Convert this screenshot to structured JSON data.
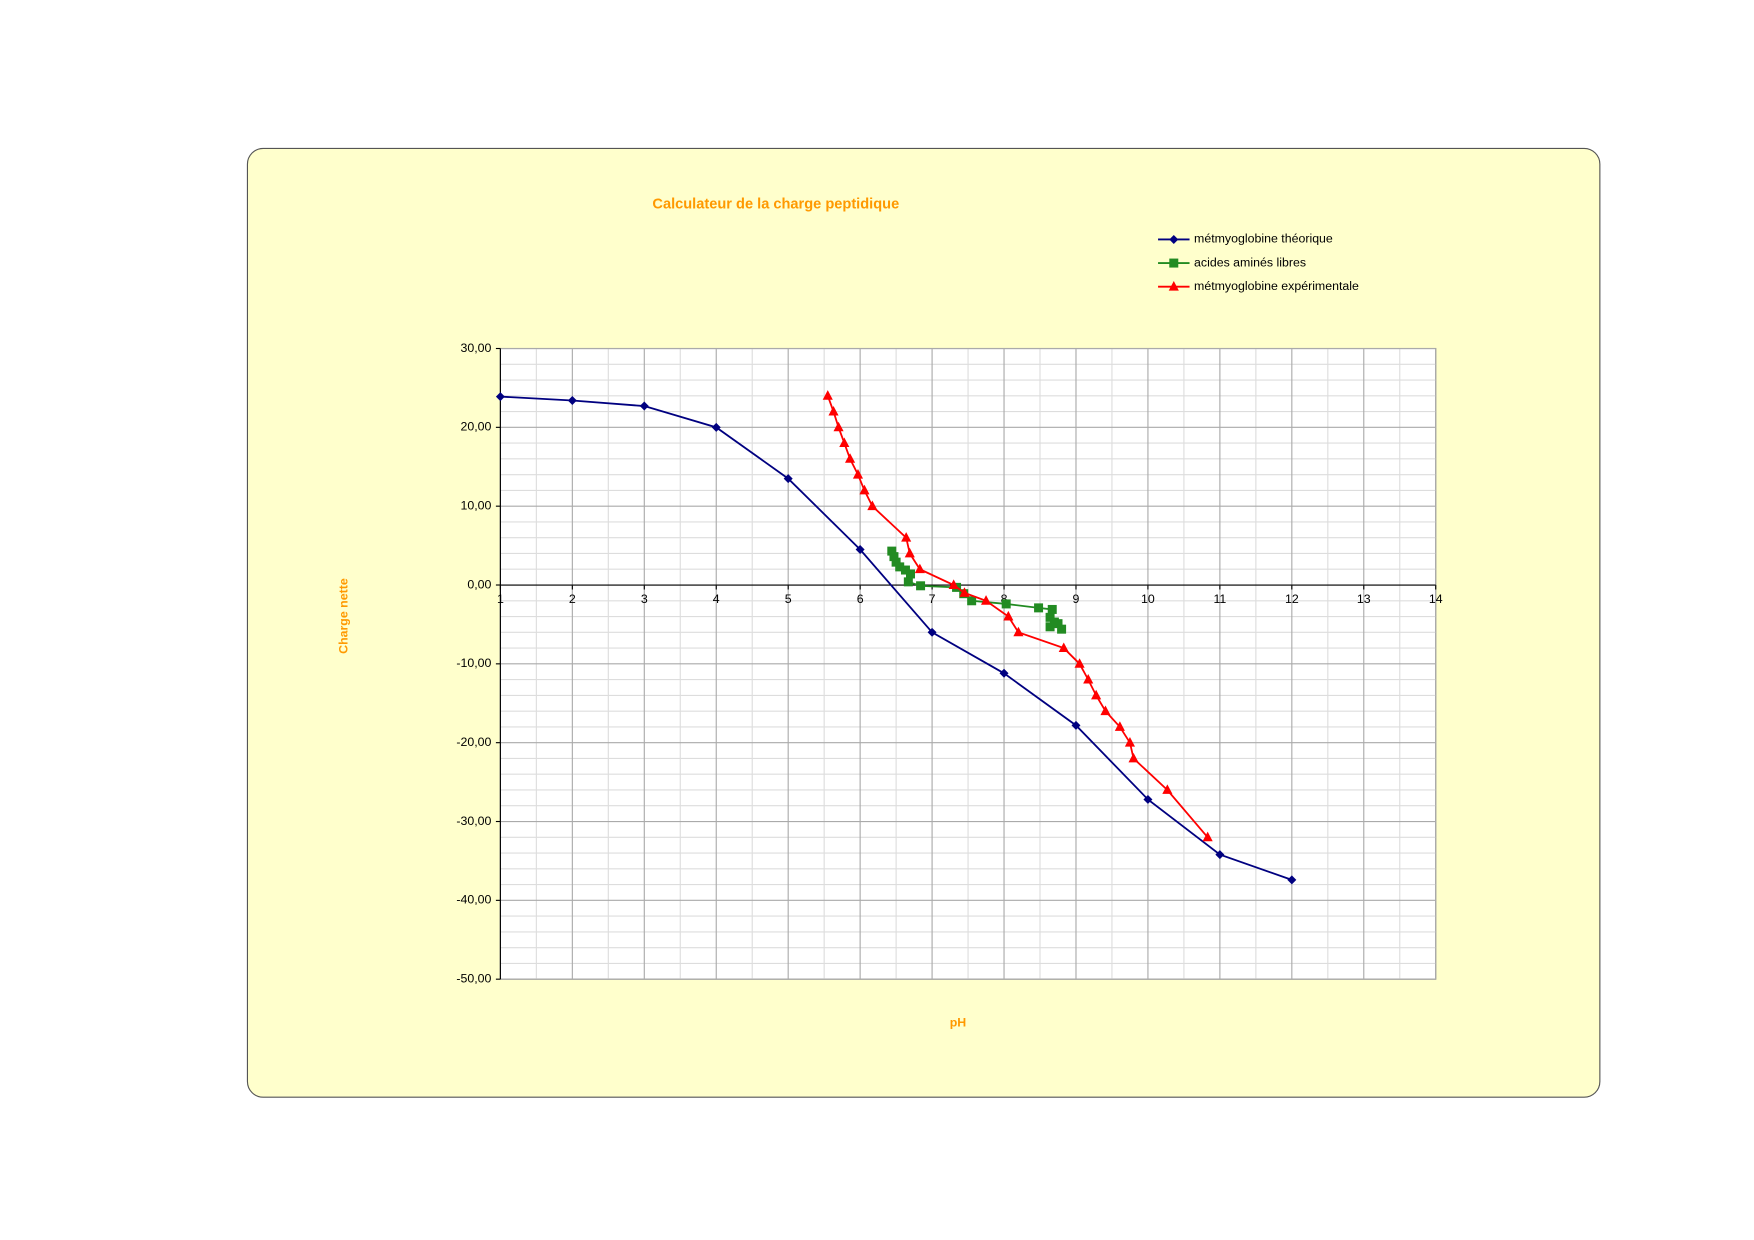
{
  "chart_data": {
    "type": "line",
    "title": "Calculateur de la charge peptidique",
    "x_label": "pH",
    "y_label": "Charge nette",
    "xlim": [
      1,
      14
    ],
    "xticks": [
      1,
      2,
      3,
      4,
      5,
      6,
      7,
      8,
      9,
      10,
      11,
      12,
      13,
      14
    ],
    "ylim": [
      -50,
      30
    ],
    "yticks": [
      {
        "value": -50,
        "label": "-50,00"
      },
      {
        "value": -40,
        "label": "-40,00"
      },
      {
        "value": -30,
        "label": "-30,00"
      },
      {
        "value": -20,
        "label": "-20,00"
      },
      {
        "value": -10,
        "label": "-10,00"
      },
      {
        "value": 0,
        "label": "0,00"
      },
      {
        "value": 10,
        "label": "10,00"
      },
      {
        "value": 20,
        "label": "20,00"
      },
      {
        "value": 30,
        "label": "30,00"
      }
    ],
    "grid": true,
    "legend": "top-right",
    "series": [
      {
        "name": "métmyoglobine théorique",
        "color": "#000080",
        "marker": "diamond",
        "x": [
          1,
          2,
          3,
          4,
          5,
          6,
          7,
          8,
          9,
          10,
          11,
          12
        ],
        "values": [
          23.9,
          23.4,
          22.7,
          20.0,
          13.5,
          4.5,
          -6.0,
          -11.2,
          -17.8,
          -27.2,
          -34.2,
          -37.4
        ]
      },
      {
        "name": "acides aminés libres",
        "color": "#228b22",
        "marker": "square",
        "x": [
          6.44,
          6.47,
          6.5,
          6.55,
          6.63,
          6.7,
          6.67,
          6.84,
          7.34,
          7.44,
          7.55,
          8.03,
          8.48,
          8.67,
          8.64,
          8.7,
          8.64,
          8.75,
          8.8
        ],
        "values": [
          4.3,
          3.6,
          2.9,
          2.3,
          1.9,
          1.4,
          0.4,
          -0.1,
          -0.3,
          -1.1,
          -2.0,
          -2.4,
          -2.9,
          -3.1,
          -4.1,
          -4.7,
          -5.3,
          -4.9,
          -5.6
        ]
      },
      {
        "name": "métmyoglobine expérimentale",
        "color": "#ff0000",
        "marker": "triangle",
        "x": [
          5.55,
          5.63,
          5.7,
          5.78,
          5.86,
          5.97,
          6.06,
          6.17,
          6.64,
          6.69,
          6.83,
          7.3,
          7.45,
          7.75,
          8.06,
          8.2,
          8.83,
          9.05,
          9.17,
          9.28,
          9.41,
          9.61,
          9.75,
          9.8,
          10.27,
          10.83
        ],
        "values": [
          24,
          22,
          20,
          18,
          16,
          14,
          12,
          10,
          6,
          4,
          2,
          0,
          -1,
          -2,
          -4,
          -6,
          -8,
          -10,
          -12,
          -14,
          -16,
          -18,
          -20,
          -22,
          -26,
          -32
        ]
      }
    ]
  }
}
